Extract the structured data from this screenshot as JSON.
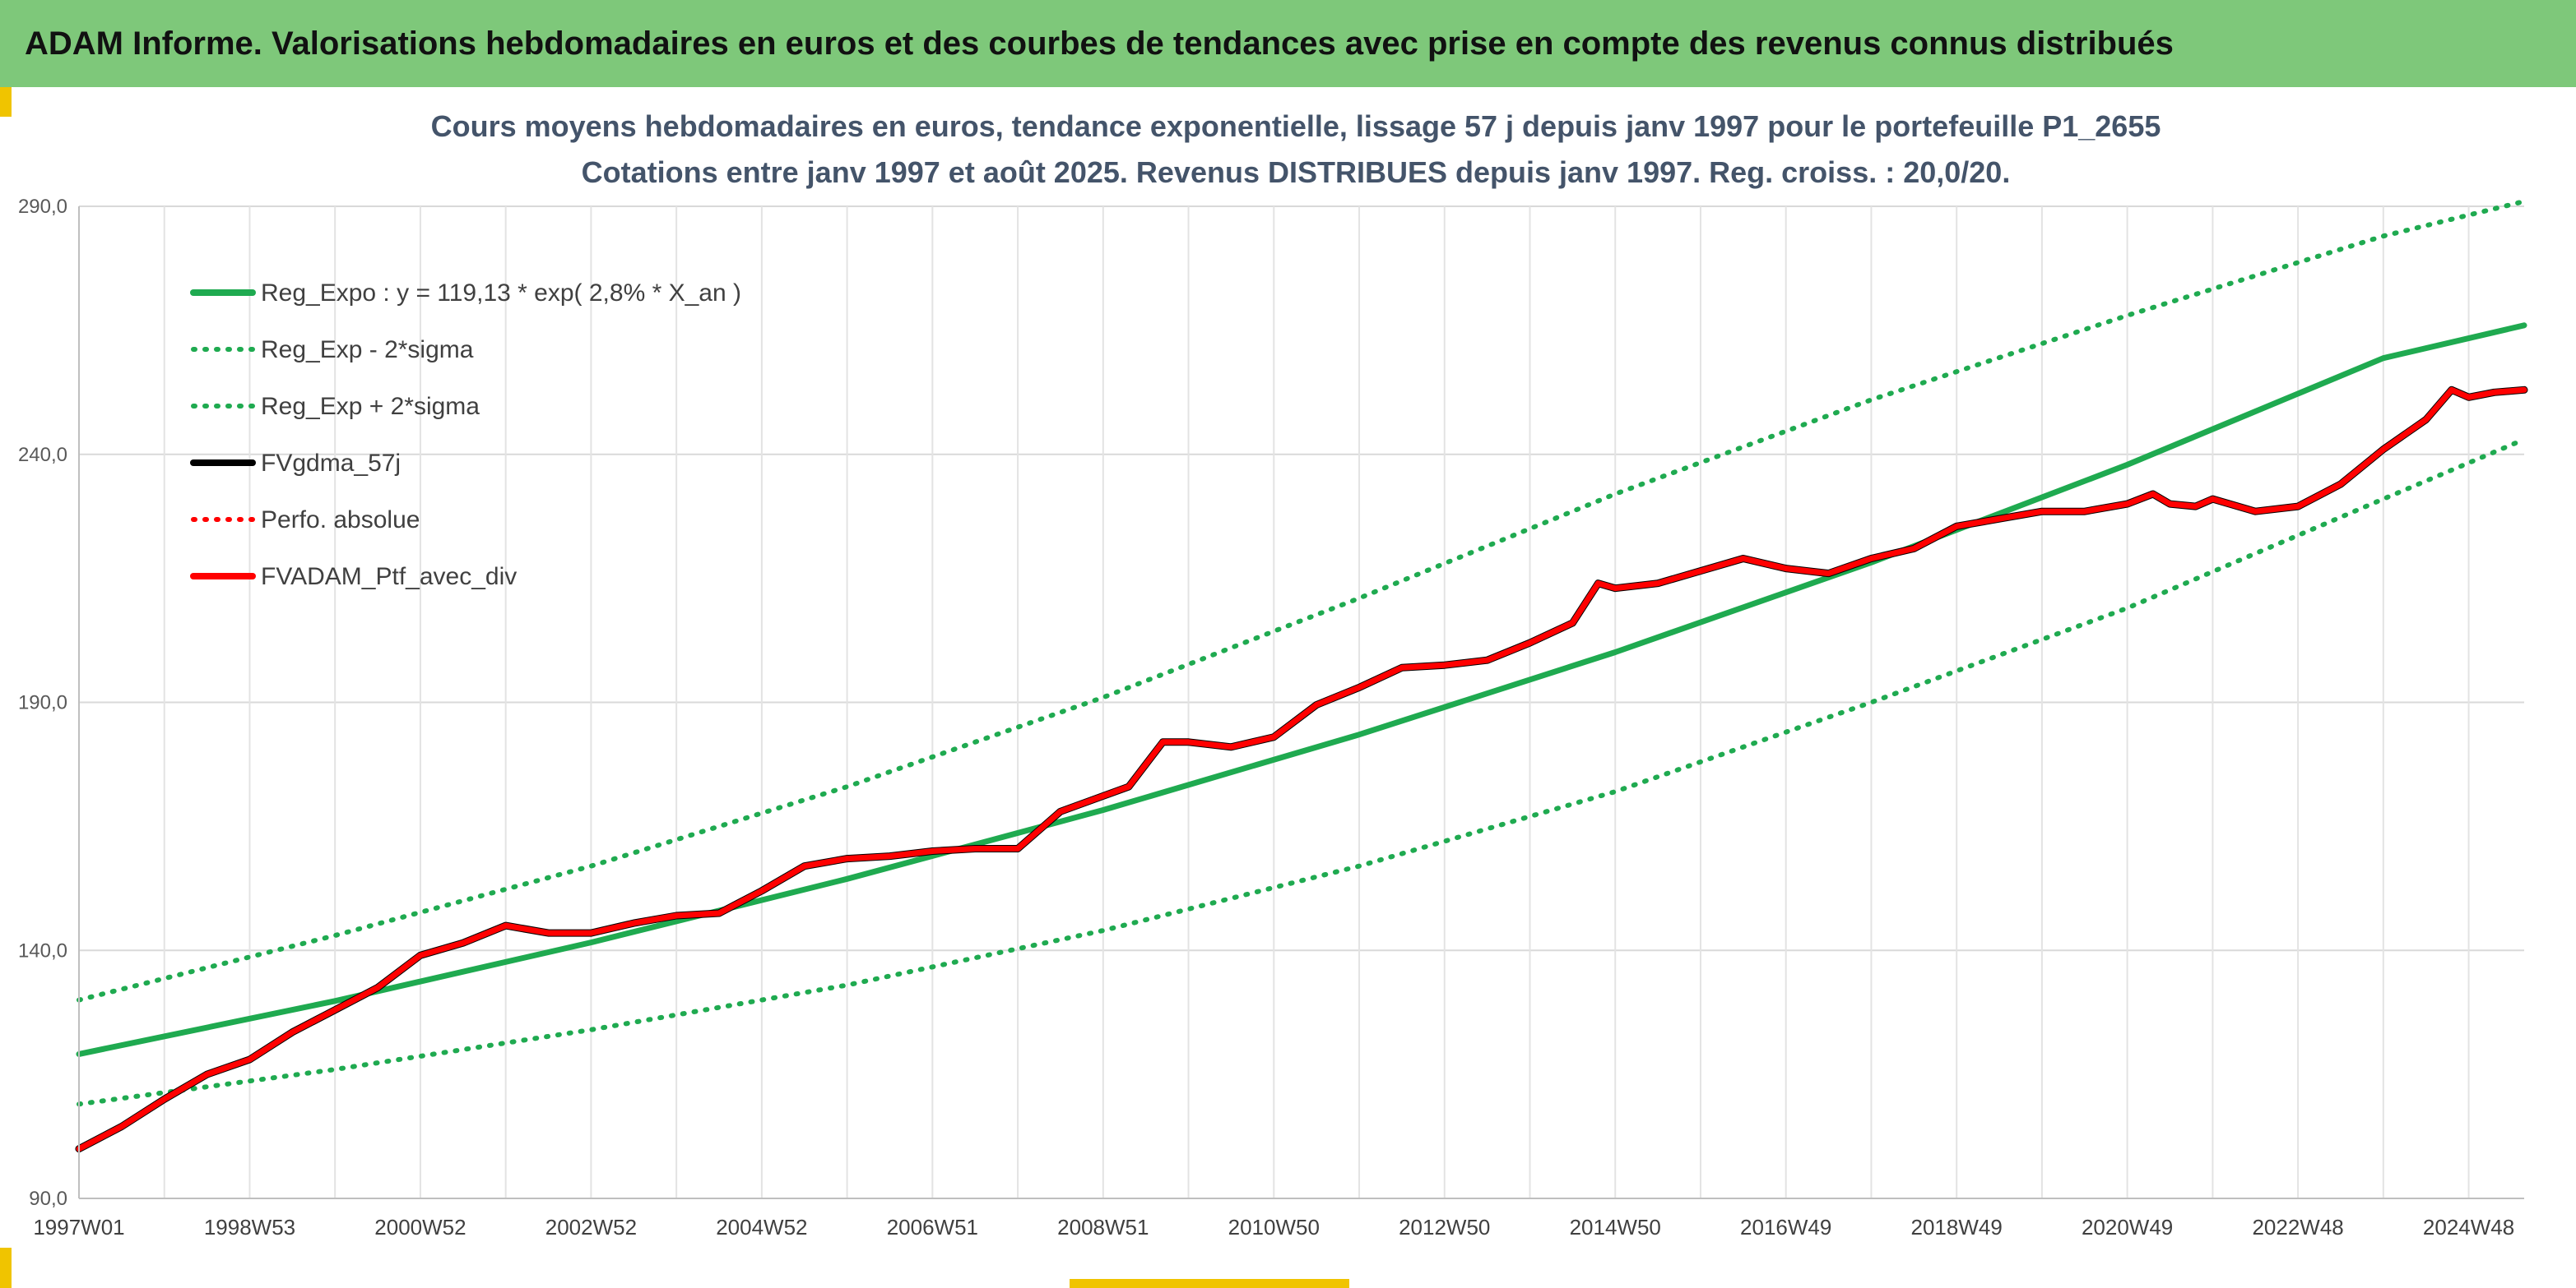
{
  "header": {
    "title": "ADAM Informe. Valorisations hebdomadaires en euros et des courbes de tendances avec prise en compte des revenus connus distribués"
  },
  "colors": {
    "header_bg": "#7ec87a",
    "accent_gold": "#f0c400",
    "trend_green": "#1faa50",
    "black_line": "#000000",
    "red_line": "#ff0000",
    "title_text": "#44546a"
  },
  "chart_data": {
    "type": "line",
    "title": "Cours moyens hebdomadaires en euros, tendance exponentielle, lissage 57 j depuis janv 1997 pour le portefeuille P1_2655",
    "subtitle": "Cotations entre janv 1997 et août 2025. Revenus DISTRIBUES depuis janv 1997. Reg. croiss. : 20,0/20.",
    "xlabel": "",
    "ylabel": "",
    "x_range": [
      1997.0,
      2025.65
    ],
    "ylim": [
      90,
      290
    ],
    "y_ticks": [
      90,
      140,
      190,
      240,
      290
    ],
    "y_tick_labels": [
      "90,0",
      "140,0",
      "190,0",
      "240,0",
      "290,0"
    ],
    "x_ticks": [
      1997.0,
      1999.0,
      2001.0,
      2003.0,
      2005.0,
      2007.0,
      2009.0,
      2011.0,
      2013.0,
      2015.0,
      2017.0,
      2019.0,
      2021.0,
      2023.0,
      2025.0
    ],
    "x_tick_labels": [
      "1997W01",
      "1998W53",
      "2000W52",
      "2002W52",
      "2004W52",
      "2006W51",
      "2008W51",
      "2010W50",
      "2012W50",
      "2014W50",
      "2016W49",
      "2018W49",
      "2020W49",
      "2022W48",
      "2024W48"
    ],
    "grid": true,
    "legend_position": "top-left",
    "legend": [
      {
        "label": "Reg_Expo : y = 119,13 * exp( 2,8% *  X_an )",
        "color": "#1faa50",
        "style": "solid"
      },
      {
        "label": "Reg_Exp - 2*sigma",
        "color": "#1faa50",
        "style": "dotted"
      },
      {
        "label": "Reg_Exp + 2*sigma",
        "color": "#1faa50",
        "style": "dotted"
      },
      {
        "label": "FVgdma_57j",
        "color": "#000000",
        "style": "solid"
      },
      {
        "label": "Perfo. absolue",
        "color": "#ff0000",
        "style": "dotted"
      },
      {
        "label": "FVADAM_Ptf_avec_div",
        "color": "#ff0000",
        "style": "solid"
      }
    ],
    "series": [
      {
        "name": "Reg_Expo : y = 119,13 * exp( 2,8% *  X_an )",
        "x": [
          1997.0,
          2000.0,
          2003.0,
          2006.0,
          2009.0,
          2012.0,
          2015.0,
          2018.0,
          2021.0,
          2024.0,
          2025.65
        ],
        "values": [
          119.1,
          129.8,
          141.6,
          154.4,
          168.3,
          183.5,
          200.1,
          218.2,
          237.9,
          259.4,
          266.0
        ]
      },
      {
        "name": "Reg_Exp - 2*sigma",
        "x": [
          1997.0,
          2000.0,
          2003.0,
          2006.0,
          2009.0,
          2012.0,
          2015.0,
          2018.0,
          2021.0,
          2024.0,
          2025.65
        ],
        "values": [
          109.0,
          116.0,
          124.0,
          133.0,
          144.0,
          157.0,
          172.0,
          190.0,
          209.0,
          231.0,
          243.0
        ]
      },
      {
        "name": "Reg_Exp + 2*sigma",
        "x": [
          1997.0,
          2000.0,
          2003.0,
          2006.0,
          2009.0,
          2012.0,
          2015.0,
          2018.0,
          2021.0,
          2024.0,
          2025.65
        ],
        "values": [
          130.0,
          143.0,
          157.0,
          173.0,
          191.0,
          211.0,
          232.0,
          251.0,
          268.0,
          284.0,
          291.0
        ]
      },
      {
        "name": "FVgdma_57j",
        "x": [
          1997.0,
          1997.5,
          1998.0,
          1998.5,
          1999.0,
          1999.5,
          2000.0,
          2000.5,
          2001.0,
          2001.5,
          2002.0,
          2002.5,
          2003.0,
          2003.5,
          2004.0,
          2004.5,
          2005.0,
          2005.5,
          2006.0,
          2006.5,
          2007.0,
          2007.5,
          2008.0,
          2008.5,
          2008.9,
          2009.3,
          2009.7,
          2010.0,
          2010.5,
          2011.0,
          2011.5,
          2012.0,
          2012.5,
          2013.0,
          2013.5,
          2014.0,
          2014.5,
          2014.8,
          2015.0,
          2015.5,
          2016.0,
          2016.5,
          2017.0,
          2017.5,
          2018.0,
          2018.5,
          2019.0,
          2019.5,
          2020.0,
          2020.5,
          2021.0,
          2021.3,
          2021.5,
          2021.8,
          2022.0,
          2022.5,
          2023.0,
          2023.5,
          2024.0,
          2024.5,
          2024.8,
          2025.0,
          2025.3,
          2025.65
        ],
        "values": [
          100.0,
          104.5,
          110.0,
          115.0,
          118.0,
          123.5,
          128.0,
          132.5,
          139.0,
          141.5,
          145.0,
          143.5,
          143.5,
          145.5,
          147.0,
          147.5,
          152.0,
          157.0,
          158.5,
          159.0,
          160.0,
          160.5,
          160.5,
          168.0,
          170.5,
          173.0,
          182.0,
          182.0,
          181.0,
          183.0,
          189.5,
          193.0,
          197.0,
          197.5,
          198.5,
          202.0,
          206.0,
          214.0,
          213.0,
          214.0,
          216.5,
          219.0,
          217.0,
          216.0,
          219.0,
          221.0,
          225.5,
          227.0,
          228.5,
          228.5,
          230.0,
          232.0,
          230.0,
          229.5,
          231.0,
          228.5,
          229.5,
          234.0,
          241.0,
          247.0,
          253.0,
          251.5,
          252.5,
          253.0
        ]
      },
      {
        "name": "FVADAM_Ptf_avec_div",
        "x": [
          1997.0,
          1997.5,
          1998.0,
          1998.5,
          1999.0,
          1999.5,
          2000.0,
          2000.5,
          2001.0,
          2001.5,
          2002.0,
          2002.5,
          2003.0,
          2003.5,
          2004.0,
          2004.5,
          2005.0,
          2005.5,
          2006.0,
          2006.5,
          2007.0,
          2007.5,
          2008.0,
          2008.5,
          2008.9,
          2009.3,
          2009.7,
          2010.0,
          2010.5,
          2011.0,
          2011.5,
          2012.0,
          2012.5,
          2013.0,
          2013.5,
          2014.0,
          2014.5,
          2014.8,
          2015.0,
          2015.5,
          2016.0,
          2016.5,
          2017.0,
          2017.5,
          2018.0,
          2018.5,
          2019.0,
          2019.5,
          2020.0,
          2020.5,
          2021.0,
          2021.3,
          2021.5,
          2021.8,
          2022.0,
          2022.5,
          2023.0,
          2023.5,
          2024.0,
          2024.5,
          2024.8,
          2025.0,
          2025.3,
          2025.65
        ],
        "values": [
          100.0,
          104.5,
          110.0,
          115.0,
          118.0,
          123.5,
          128.0,
          132.5,
          139.0,
          141.5,
          145.0,
          143.5,
          143.5,
          145.5,
          147.0,
          147.5,
          152.0,
          157.0,
          158.5,
          159.0,
          160.0,
          160.5,
          160.5,
          168.0,
          170.5,
          173.0,
          182.0,
          182.0,
          181.0,
          183.0,
          189.5,
          193.0,
          197.0,
          197.5,
          198.5,
          202.0,
          206.0,
          214.0,
          213.0,
          214.0,
          216.5,
          219.0,
          217.0,
          216.0,
          219.0,
          221.0,
          225.5,
          227.0,
          228.5,
          228.5,
          230.0,
          232.0,
          230.0,
          229.5,
          231.0,
          228.5,
          229.5,
          234.0,
          241.0,
          247.0,
          253.0,
          251.5,
          252.5,
          253.0
        ]
      }
    ]
  }
}
